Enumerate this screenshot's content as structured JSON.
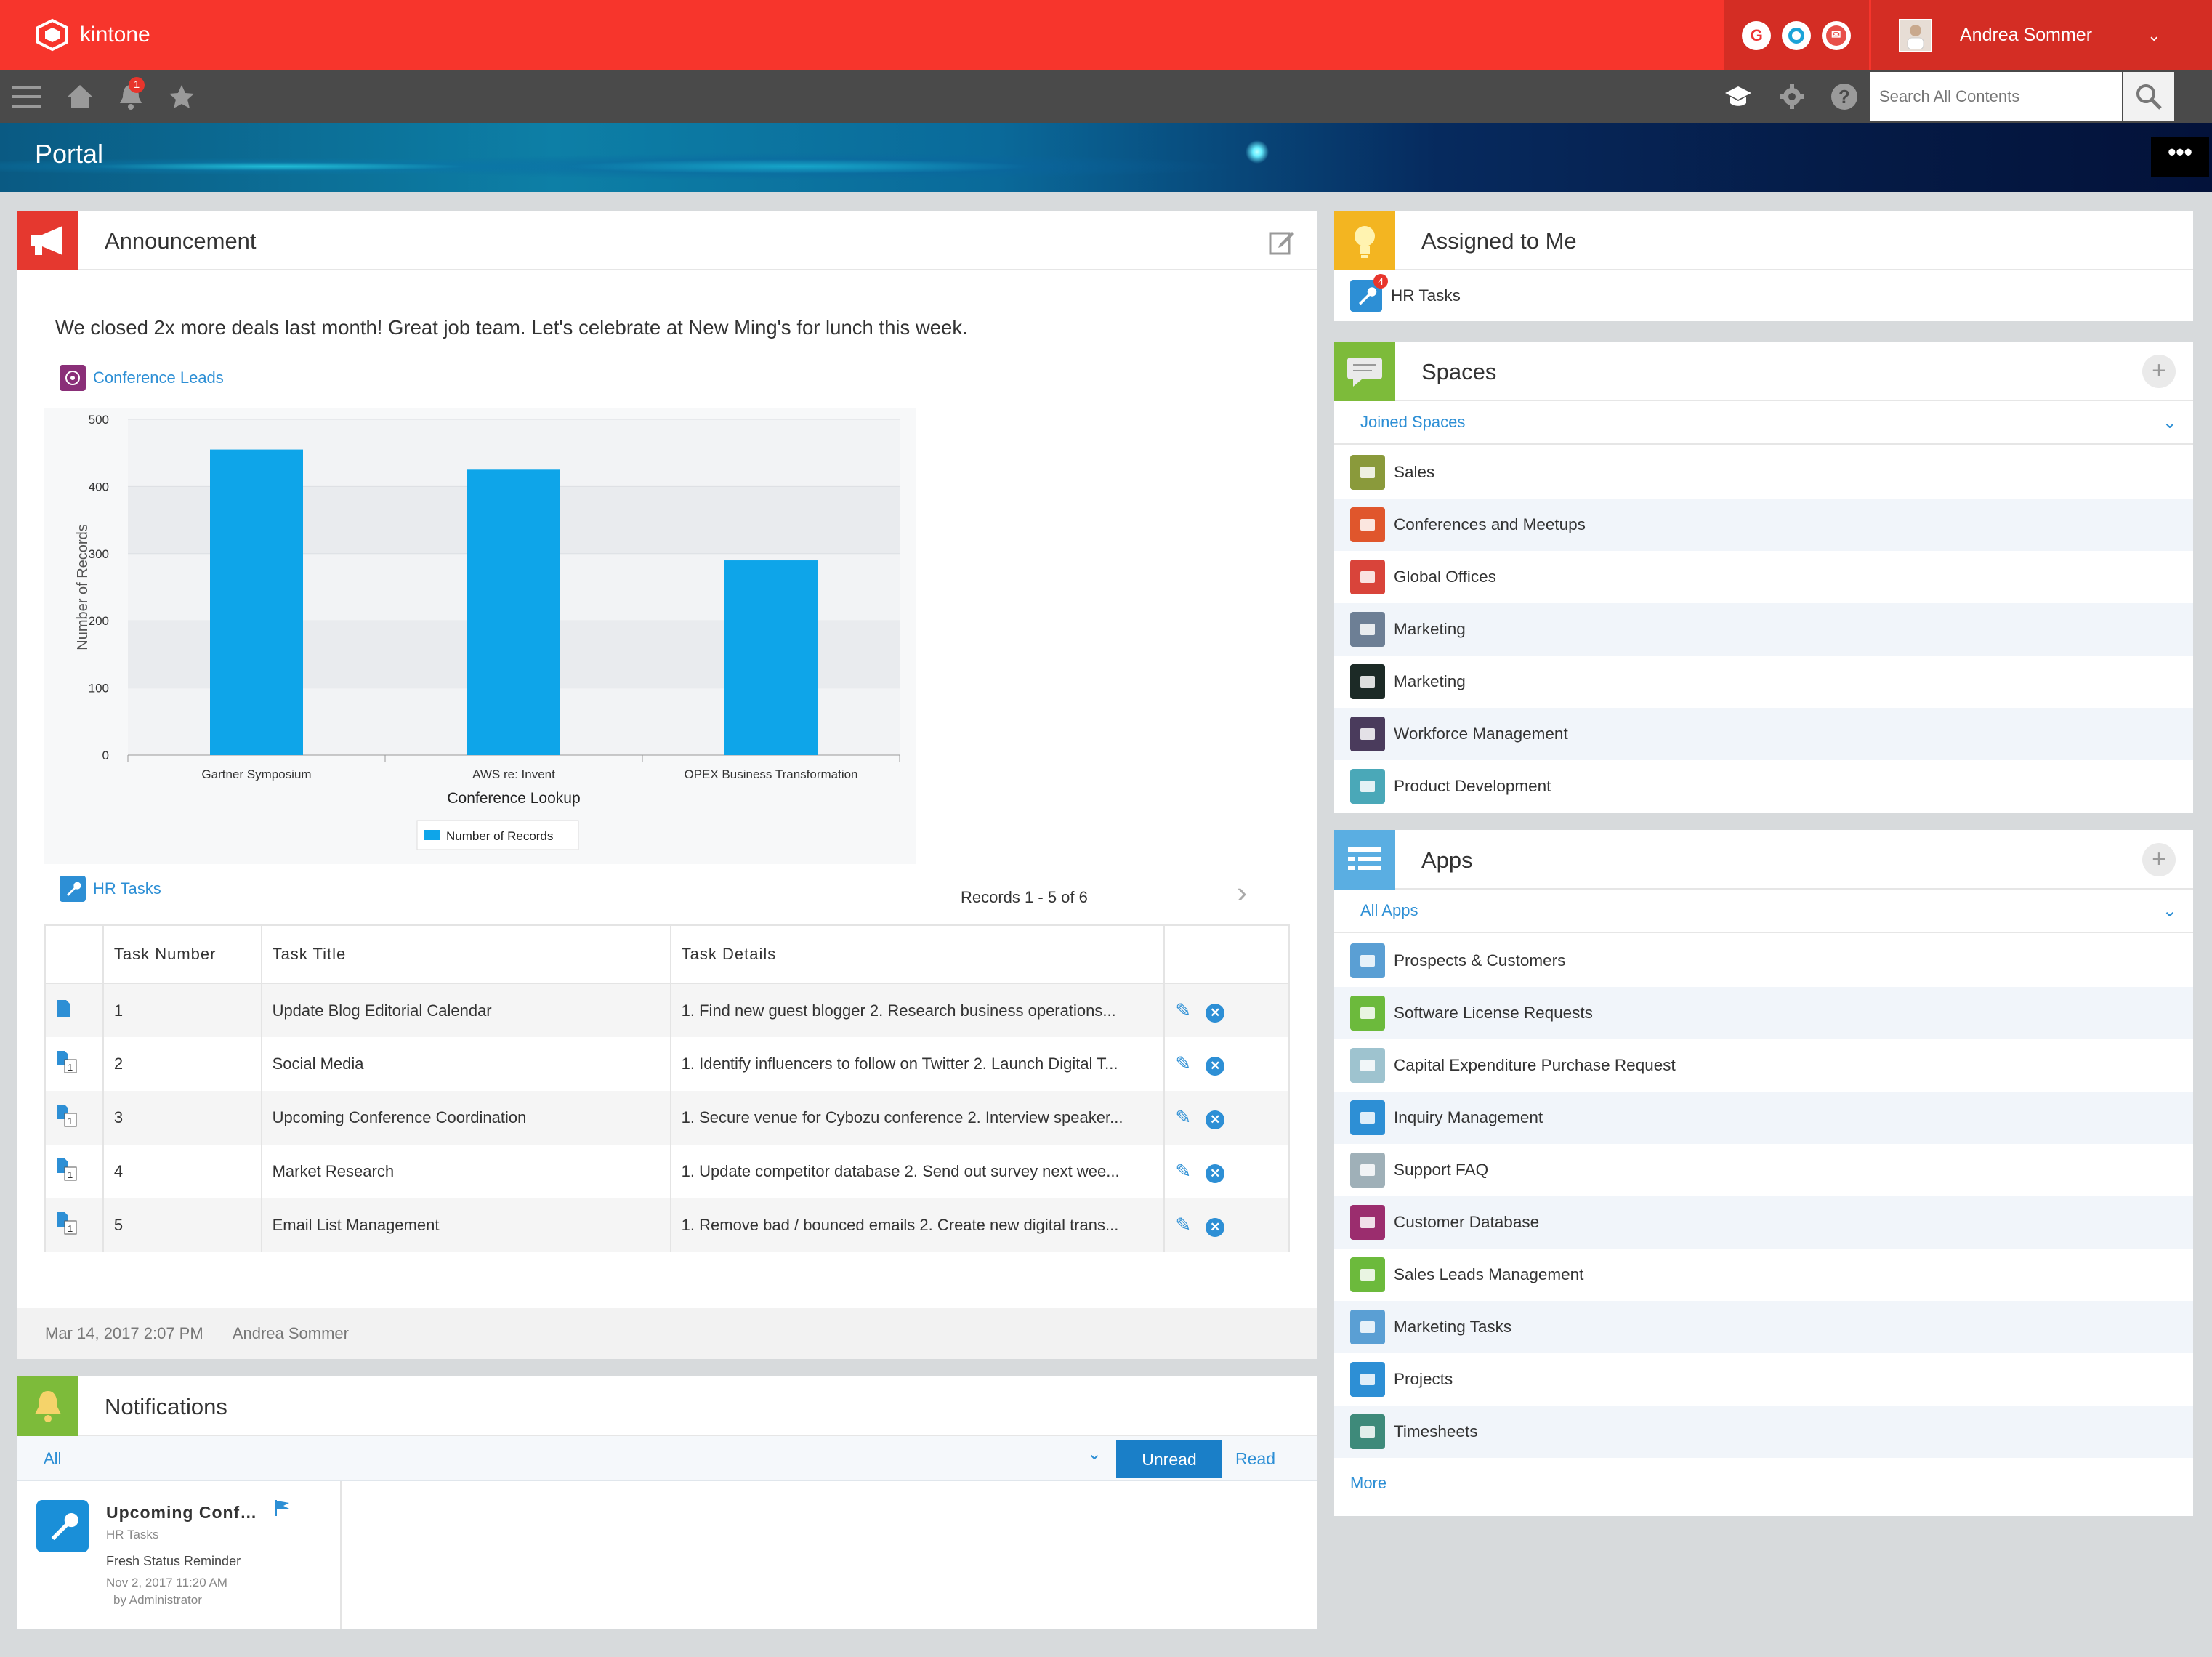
{
  "app": {
    "logo_text": "kintone"
  },
  "user": {
    "name": "Andrea Sommer"
  },
  "nav": {
    "notification_count": "1",
    "search_placeholder": "Search All Contents"
  },
  "portal": {
    "title": "Portal",
    "more": "•••"
  },
  "announcement": {
    "title": "Announcement",
    "text": "We closed 2x more deals last month! Great job team. Let's celebrate at New Ming's for lunch this week.",
    "chart_link": "Conference Leads",
    "tasks_link": "HR Tasks",
    "records_text": "Records 1 - 5  of 6",
    "columns": [
      "Task Number",
      "Task Title",
      "Task Details"
    ],
    "rows": [
      {
        "num": "1",
        "title": "Update Blog Editorial Calendar",
        "details": "1. Find new guest blogger  2. Research business operations..."
      },
      {
        "num": "2",
        "title": "Social Media",
        "details": "1. Identify influencers to follow on Twitter 2. Launch Digital T..."
      },
      {
        "num": "3",
        "title": "Upcoming Conference Coordination",
        "details": "1. Secure venue for Cybozu conference 2. Interview speaker..."
      },
      {
        "num": "4",
        "title": "Market Research",
        "details": "1. Update competitor database 2. Send out survey next wee..."
      },
      {
        "num": "5",
        "title": "Email List Management",
        "details": "1. Remove bad / bounced emails 2. Create new digital trans..."
      }
    ],
    "footer_date": "Mar 14, 2017 2:07 PM",
    "footer_author": "Andrea Sommer"
  },
  "chart_data": {
    "type": "bar",
    "categories": [
      "Gartner Symposium",
      "AWS re: Invent",
      "OPEX Business Transformation"
    ],
    "series": [
      {
        "name": "Number of Records",
        "values": [
          455,
          425,
          290
        ],
        "color": "#0ea5e9"
      }
    ],
    "xlabel": "Conference Lookup",
    "ylabel": "Number of Records",
    "ylim": [
      0,
      500
    ],
    "yticks": [
      0,
      100,
      200,
      300,
      400,
      500
    ],
    "legend": "bottom-center",
    "grid": true
  },
  "notifications": {
    "title": "Notifications",
    "filter": "All",
    "tab_unread": "Unread",
    "tab_read": "Read",
    "item": {
      "title": "Upcoming Conf…",
      "app": "HR Tasks",
      "message": "Fresh Status Reminder",
      "date": "Nov 2, 2017 11:20 AM",
      "by": "by Administrator"
    }
  },
  "assigned": {
    "title": "Assigned to Me",
    "item": "HR Tasks",
    "badge": "4"
  },
  "spaces": {
    "title": "Spaces",
    "filter": "Joined Spaces",
    "items": [
      {
        "label": "Sales",
        "color": "#8a9a3b",
        "icon": "presentation-icon"
      },
      {
        "label": "Conferences and Meetups",
        "color": "#e0562c",
        "icon": "handshake-icon"
      },
      {
        "label": "Global Offices",
        "color": "#d9443a",
        "icon": "globe-icon"
      },
      {
        "label": "Marketing",
        "color": "#6d7f95",
        "icon": "sky-image-icon"
      },
      {
        "label": "Marketing",
        "color": "#1c2a26",
        "icon": "dark-image-icon"
      },
      {
        "label": "Workforce Management",
        "color": "#4a3b5c",
        "icon": "people-icon"
      },
      {
        "label": "Product Development",
        "color": "#4aa8b8",
        "icon": "tools-icon"
      }
    ]
  },
  "apps": {
    "title": "Apps",
    "filter": "All Apps",
    "more": "More",
    "items": [
      {
        "label": "Prospects & Customers",
        "color": "#5a9fd4",
        "icon": "list-icon"
      },
      {
        "label": "Software License Requests",
        "color": "#6cba3c",
        "icon": "monitor-icon"
      },
      {
        "label": "Capital Expenditure Purchase Request",
        "color": "#9ec3cf",
        "icon": "calculator-icon"
      },
      {
        "label": "Inquiry Management",
        "color": "#2d8fd5",
        "icon": "mouse-icon"
      },
      {
        "label": "Support FAQ",
        "color": "#9fb0b8",
        "icon": "speech-icon"
      },
      {
        "label": "Customer Database",
        "color": "#9b2d6e",
        "icon": "person-icon"
      },
      {
        "label": "Sales Leads Management",
        "color": "#6cba3c",
        "icon": "briefcase-icon"
      },
      {
        "label": "Marketing Tasks",
        "color": "#5a9fd4",
        "icon": "list-icon"
      },
      {
        "label": "Projects",
        "color": "#2d8fd5",
        "icon": "cup-icon"
      },
      {
        "label": "Timesheets",
        "color": "#3e8a7a",
        "icon": "clock-icon"
      }
    ]
  }
}
